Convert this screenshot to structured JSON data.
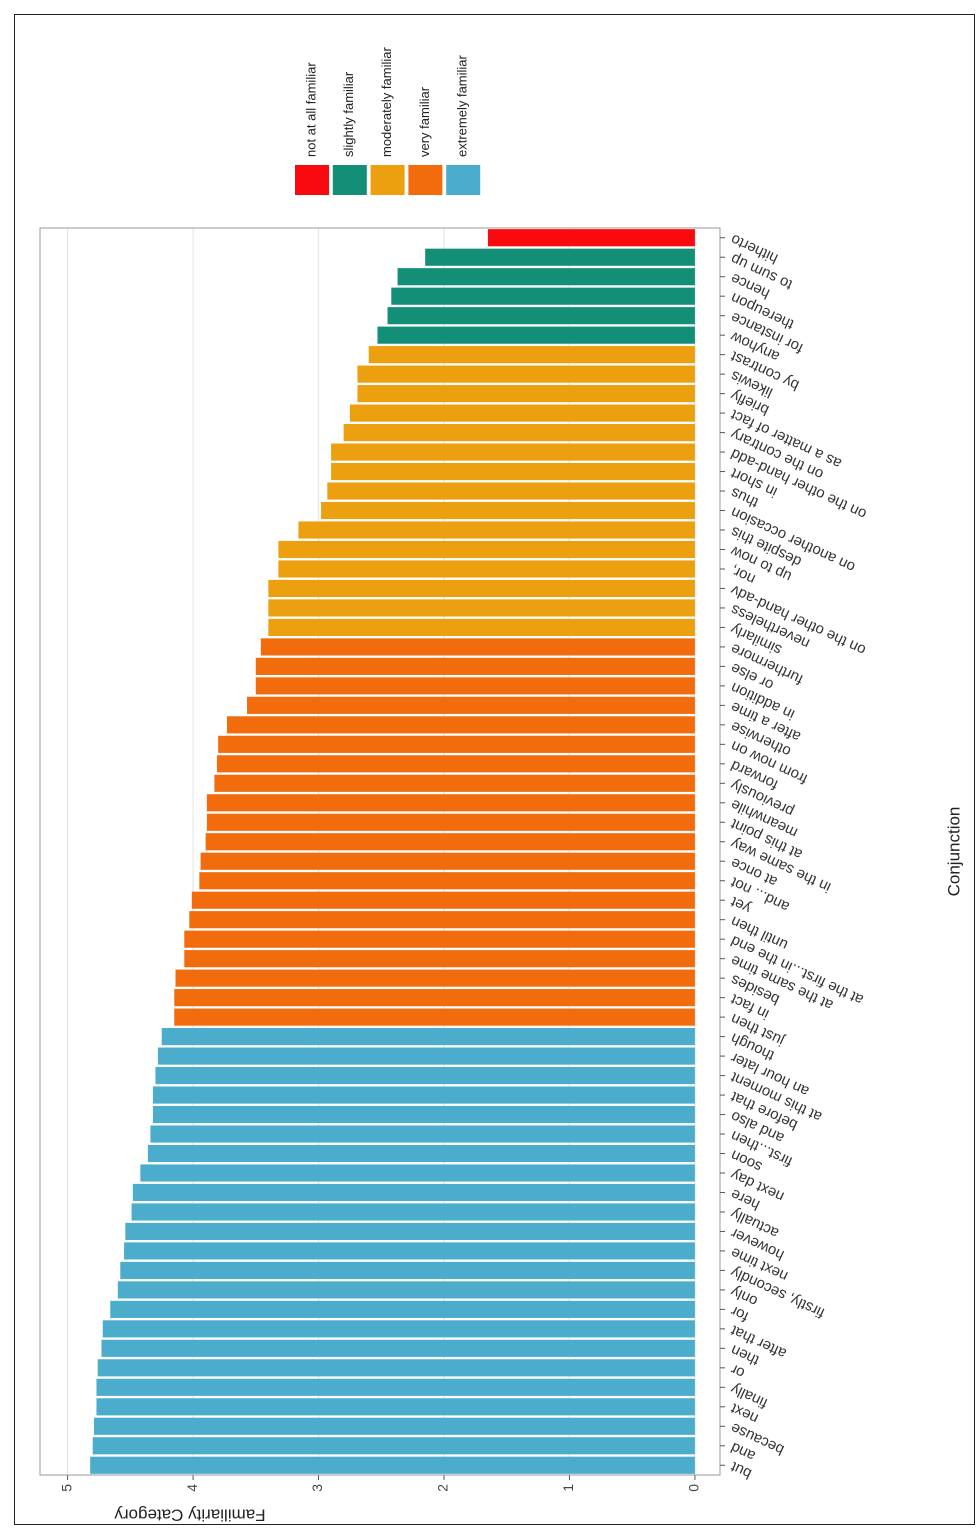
{
  "chart_data": {
    "type": "bar",
    "x_label": "Conjunction",
    "y_label": "Familiarity Category",
    "categories": [
      "but",
      "and",
      "because",
      "next",
      "finally",
      "or",
      "then",
      "after that",
      "for",
      "only",
      "firstly, secondly",
      "next time",
      "however",
      "actually",
      "here",
      "next day",
      "soon",
      "first...then",
      "and also",
      "before that",
      "at this moment",
      "an hour later",
      "though",
      "just then",
      "in fact",
      "besides",
      "at the same time",
      "at the first...in the end",
      "until then",
      "yet",
      "and... not",
      "at once",
      "in the same way",
      "at this point",
      "meanwhile",
      "previously",
      "forward",
      "from now on",
      "otherwise",
      "after a time",
      "in addition",
      "or else",
      "furthermore",
      "similarly",
      "nevertheless",
      "on the other hand-adv",
      "nor,",
      "up to now",
      "despite this",
      "on another occasion",
      "thus",
      "in short",
      "on the other hand-add",
      "on the contrary",
      "as a matter of fact",
      "briefly",
      "likewis",
      "by contrast",
      "anyhow",
      "for instance",
      "thereupon",
      "hence",
      "to sum up",
      "hitherto"
    ],
    "series": [
      {
        "name": "not at all familiar",
        "color": "#f80a0f",
        "values": [
          null,
          null,
          null,
          null,
          null,
          null,
          null,
          null,
          null,
          null,
          null,
          null,
          null,
          null,
          null,
          null,
          null,
          null,
          null,
          null,
          null,
          null,
          null,
          null,
          null,
          null,
          null,
          null,
          null,
          null,
          null,
          null,
          null,
          null,
          null,
          null,
          null,
          null,
          null,
          null,
          null,
          null,
          null,
          null,
          null,
          null,
          null,
          null,
          null,
          null,
          null,
          null,
          null,
          null,
          null,
          null,
          null,
          null,
          null,
          null,
          null,
          null,
          null,
          1.65
        ]
      },
      {
        "name": "slightly familiar",
        "color": "#138f77",
        "values": [
          null,
          null,
          null,
          null,
          null,
          null,
          null,
          null,
          null,
          null,
          null,
          null,
          null,
          null,
          null,
          null,
          null,
          null,
          null,
          null,
          null,
          null,
          null,
          null,
          null,
          null,
          null,
          null,
          null,
          null,
          null,
          null,
          null,
          null,
          null,
          null,
          null,
          null,
          null,
          null,
          null,
          null,
          null,
          null,
          null,
          null,
          null,
          null,
          null,
          null,
          null,
          null,
          null,
          null,
          null,
          null,
          null,
          null,
          2.53,
          2.45,
          2.42,
          2.37,
          2.15,
          null
        ]
      },
      {
        "name": "moderately familiar",
        "color": "#eca00f",
        "values": [
          null,
          null,
          null,
          null,
          null,
          null,
          null,
          null,
          null,
          null,
          null,
          null,
          null,
          null,
          null,
          null,
          null,
          null,
          null,
          null,
          null,
          null,
          null,
          null,
          null,
          null,
          null,
          null,
          null,
          null,
          null,
          null,
          null,
          null,
          null,
          null,
          null,
          null,
          null,
          null,
          null,
          null,
          null,
          3.4,
          3.4,
          3.4,
          3.32,
          3.32,
          3.16,
          2.98,
          2.93,
          2.9,
          2.9,
          2.8,
          2.75,
          2.69,
          2.69,
          2.6,
          null,
          null,
          null,
          null,
          null,
          null
        ]
      },
      {
        "name": "very familiar",
        "color": "#f26c0e",
        "values": [
          null,
          null,
          null,
          null,
          null,
          null,
          null,
          null,
          null,
          null,
          null,
          null,
          null,
          null,
          null,
          null,
          null,
          null,
          null,
          null,
          null,
          null,
          null,
          4.15,
          4.15,
          4.14,
          4.07,
          4.07,
          4.03,
          4.01,
          3.95,
          3.94,
          3.9,
          3.89,
          3.89,
          3.83,
          3.81,
          3.8,
          3.73,
          3.57,
          3.5,
          3.5,
          3.46,
          null,
          null,
          null,
          null,
          null,
          null,
          null,
          null,
          null,
          null,
          null,
          null,
          null,
          null,
          null,
          null,
          null,
          null,
          null,
          null,
          null
        ]
      },
      {
        "name": "extremely familiar",
        "color": "#4badcb",
        "values": [
          4.82,
          4.8,
          4.79,
          4.77,
          4.77,
          4.76,
          4.73,
          4.72,
          4.66,
          4.6,
          4.58,
          4.55,
          4.54,
          4.49,
          4.48,
          4.42,
          4.36,
          4.34,
          4.32,
          4.32,
          4.3,
          4.28,
          4.25,
          null,
          null,
          null,
          null,
          null,
          null,
          null,
          null,
          null,
          null,
          null,
          null,
          null,
          null,
          null,
          null,
          null,
          null,
          null,
          null,
          null,
          null,
          null,
          null,
          null,
          null,
          null,
          null,
          null,
          null,
          null,
          null,
          null,
          null,
          null,
          null,
          null,
          null,
          null,
          null,
          null
        ]
      }
    ],
    "ylim": [
      -0.2,
      5.22
    ],
    "yticks": [
      0,
      1,
      2,
      3,
      4,
      5
    ],
    "grid": true,
    "legend": "right"
  }
}
